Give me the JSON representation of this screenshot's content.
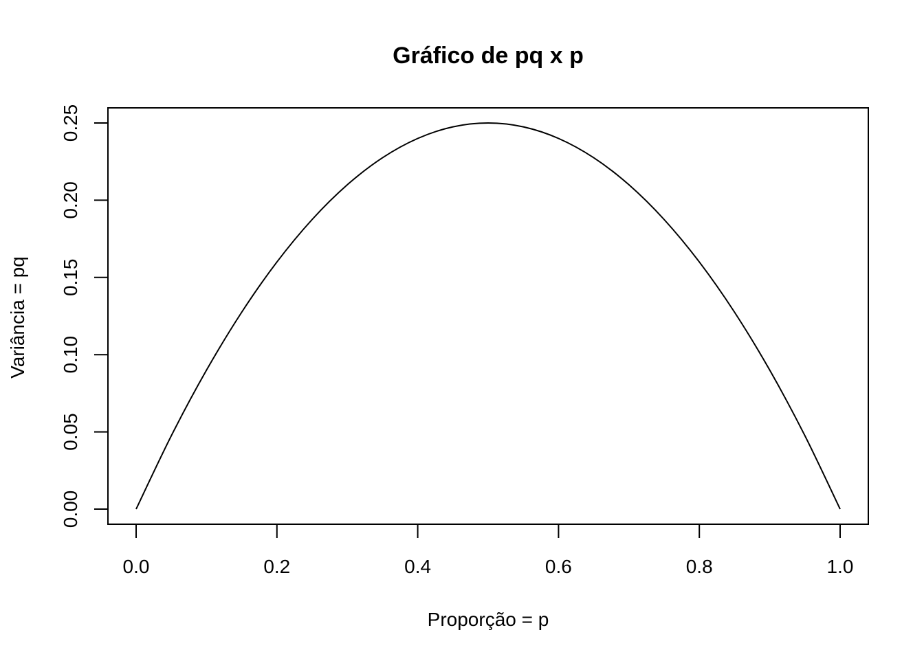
{
  "chart_data": {
    "type": "line",
    "title": "Gráfico de pq x p",
    "xlabel": "Proporção = p",
    "ylabel": "Variância = pq",
    "xlim": [
      0.0,
      1.0
    ],
    "ylim": [
      0.0,
      0.25
    ],
    "x_ticks": [
      "0.0",
      "0.2",
      "0.4",
      "0.6",
      "0.8",
      "1.0"
    ],
    "y_ticks": [
      "0.00",
      "0.05",
      "0.10",
      "0.15",
      "0.20",
      "0.25"
    ],
    "grid": false,
    "legend": "none",
    "line_color": "#000000",
    "series": [
      {
        "x": [
          0.0,
          0.05,
          0.1,
          0.15,
          0.2,
          0.25,
          0.3,
          0.35,
          0.4,
          0.45,
          0.5,
          0.55,
          0.6,
          0.65,
          0.7,
          0.75,
          0.8,
          0.85,
          0.9,
          0.95,
          1.0
        ],
        "y": [
          0.0,
          0.0475,
          0.09,
          0.1275,
          0.16,
          0.1875,
          0.21,
          0.2275,
          0.24,
          0.2475,
          0.25,
          0.2475,
          0.24,
          0.2275,
          0.21,
          0.1875,
          0.16,
          0.1275,
          0.09,
          0.0475,
          0.0
        ]
      }
    ]
  }
}
